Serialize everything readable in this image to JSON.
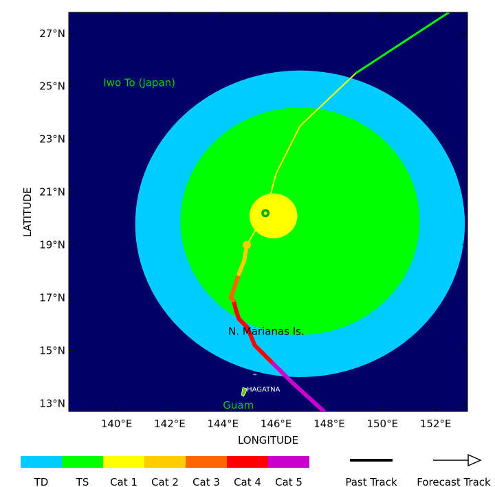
{
  "map": {
    "lon_range": [
      138.2,
      153.2
    ],
    "lat_range": [
      12.7,
      27.8
    ],
    "xlabel": "LONGITUDE",
    "ylabel": "LATITUDE",
    "ocean_color": "#000066",
    "lon_ticks": [
      {
        "value": 140,
        "label": "140°E"
      },
      {
        "value": 142,
        "label": "142°E"
      },
      {
        "value": 144,
        "label": "144°E"
      },
      {
        "value": 146,
        "label": "146°E"
      },
      {
        "value": 148,
        "label": "148°E"
      },
      {
        "value": 150,
        "label": "150°E"
      },
      {
        "value": 152,
        "label": "152°E"
      }
    ],
    "lat_ticks": [
      {
        "value": 13,
        "label": "13°N"
      },
      {
        "value": 15,
        "label": "15°N"
      },
      {
        "value": 17,
        "label": "17°N"
      },
      {
        "value": 19,
        "label": "19°N"
      },
      {
        "value": 21,
        "label": "21°N"
      },
      {
        "value": 23,
        "label": "23°N"
      },
      {
        "value": 25,
        "label": "25°N"
      },
      {
        "value": 27,
        "label": "27°N"
      }
    ]
  },
  "wind_fields": [
    {
      "name": "TD",
      "color": "#00ccff",
      "center_lon": 146.9,
      "center_lat": 19.8,
      "radius_lon": 6.2,
      "radius_lat": 5.8
    },
    {
      "name": "TS",
      "color": "#00ff00",
      "center_lon": 146.9,
      "center_lat": 19.9,
      "radius_lon": 4.5,
      "radius_lat": 4.3
    },
    {
      "name": "Cat 1",
      "color": "#ffff00",
      "center_lon": 145.9,
      "center_lat": 20.1,
      "radius_lon": 0.9,
      "radius_lat": 0.85
    }
  ],
  "tracks": {
    "past": [
      {
        "lon": 147.8,
        "lat": 12.7,
        "cat": "Cat 5"
      },
      {
        "lon": 146.6,
        "lat": 13.8,
        "cat": "Cat 5"
      },
      {
        "lon": 145.8,
        "lat": 14.6,
        "cat": "Cat 5"
      },
      {
        "lon": 145.5,
        "lat": 14.9,
        "cat": "Cat 4"
      },
      {
        "lon": 145.2,
        "lat": 15.2,
        "cat": "Cat 4"
      },
      {
        "lon": 144.9,
        "lat": 15.9,
        "cat": "Cat 4"
      },
      {
        "lon": 144.6,
        "lat": 16.2,
        "cat": "Cat 4"
      },
      {
        "lon": 144.5,
        "lat": 16.5,
        "cat": "Cat 4"
      },
      {
        "lon": 144.4,
        "lat": 16.9,
        "cat": "Cat 4"
      },
      {
        "lon": 144.3,
        "lat": 17.0,
        "cat": "Cat 3"
      },
      {
        "lon": 144.5,
        "lat": 17.6,
        "cat": "Cat 3"
      },
      {
        "lon": 144.6,
        "lat": 17.9,
        "cat": "Cat 3"
      },
      {
        "lon": 144.8,
        "lat": 18.4,
        "cat": "Cat 2"
      },
      {
        "lon": 144.9,
        "lat": 19.0,
        "cat": "Cat 2"
      }
    ],
    "forecast": [
      {
        "lon": 144.9,
        "lat": 19.0
      },
      {
        "lon": 145.6,
        "lat": 20.2
      },
      {
        "lon": 146.0,
        "lat": 21.7
      },
      {
        "lon": 146.9,
        "lat": 23.5
      },
      {
        "lon": 149.0,
        "lat": 25.5
      },
      {
        "lon": 152.5,
        "lat": 27.8
      }
    ],
    "forecast_color": "#ffff00",
    "extended_color": "#00ff00",
    "extended_from_index": 4,
    "markers": [
      {
        "lon": 144.9,
        "lat": 19.0,
        "color": "#ffcc00",
        "kind": "position"
      },
      {
        "lon": 145.6,
        "lat": 20.2,
        "color": "#00aa00",
        "kind": "eye"
      }
    ]
  },
  "places": [
    {
      "name": "Iwo To (Japan)",
      "lon": 139.5,
      "lat": 25.0,
      "color": "#00cc00",
      "size": 15
    },
    {
      "name": "N. Marianas Is.",
      "lon": 144.2,
      "lat": 15.6,
      "color": "#000000",
      "size": 15
    },
    {
      "name": "Guam",
      "lon": 144.0,
      "lat": 12.8,
      "color": "#00cc00",
      "size": 15
    },
    {
      "name": "HAGATNA",
      "lon": 144.9,
      "lat": 13.45,
      "color": "#ffffff",
      "size": 10
    }
  ],
  "islands": [
    {
      "lon": 144.8,
      "lat": 13.45,
      "color": "#66cc00",
      "kind": "guam"
    },
    {
      "lon": 145.2,
      "lat": 14.1,
      "color": "#888888",
      "kind": "rota"
    }
  ],
  "legend": {
    "categories": [
      {
        "label": "TD",
        "color": "#00ccff"
      },
      {
        "label": "TS",
        "color": "#00ff00"
      },
      {
        "label": "Cat 1",
        "color": "#ffff00"
      },
      {
        "label": "Cat 2",
        "color": "#ffcc00"
      },
      {
        "label": "Cat 3",
        "color": "#ff6600"
      },
      {
        "label": "Cat 4",
        "color": "#ff0000"
      },
      {
        "label": "Cat 5",
        "color": "#cc00cc"
      }
    ],
    "past_track_label": "Past Track",
    "forecast_track_label": "Forecast Track"
  }
}
